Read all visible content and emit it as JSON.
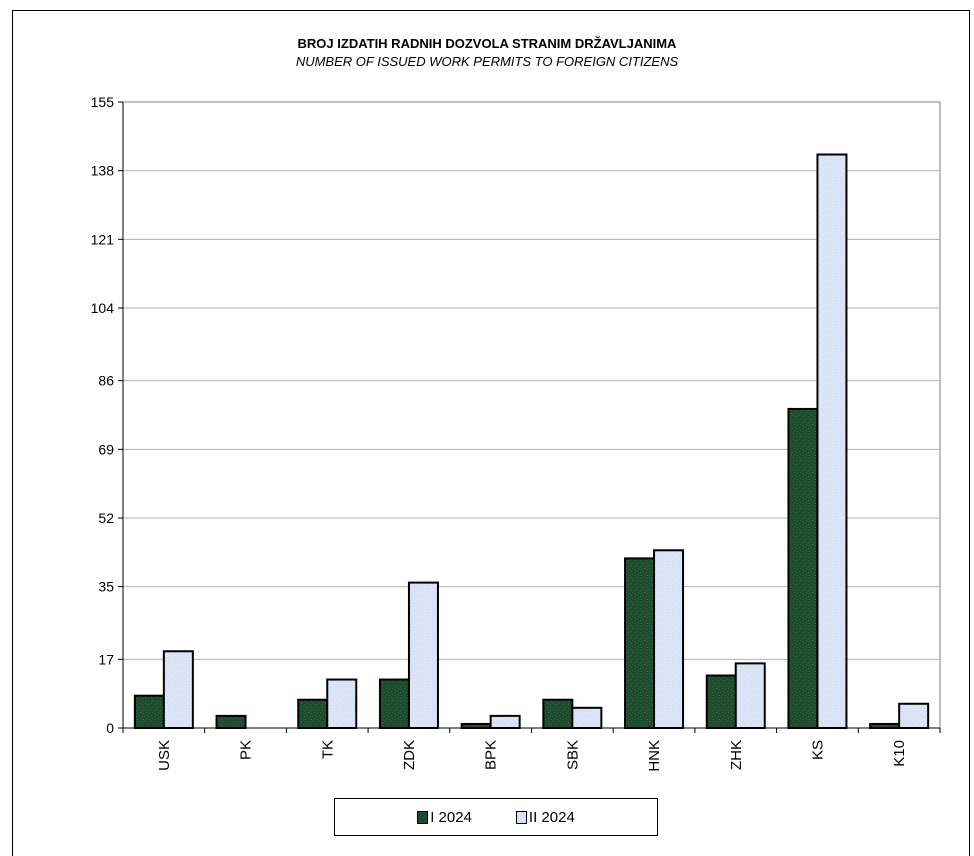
{
  "chart_data": {
    "type": "bar",
    "title": "BROJ IZDATIH RADNIH DOZVOLA STRANIM DRŽAVLJANIMA",
    "subtitle": "NUMBER OF ISSUED WORK PERMITS TO FOREIGN CITIZENS",
    "categories": [
      "USK",
      "PK",
      "TK",
      "ZDK",
      "BPK",
      "SBK",
      "HNK",
      "ZHK",
      "KS",
      "K10"
    ],
    "series": [
      {
        "name": "I  2024",
        "values": [
          8,
          3,
          7,
          12,
          1,
          7,
          42,
          13,
          79,
          1
        ],
        "color": "#1f4a2d"
      },
      {
        "name": "II  2024",
        "values": [
          19,
          0,
          12,
          36,
          3,
          5,
          44,
          16,
          142,
          6
        ],
        "color": "#d6e2f6"
      }
    ],
    "yticks": [
      "0",
      "17",
      "35",
      "52",
      "69",
      "86",
      "104",
      "121",
      "138",
      "155"
    ],
    "ylim": [
      0,
      155
    ],
    "grid": true,
    "legend_position": "bottom"
  }
}
